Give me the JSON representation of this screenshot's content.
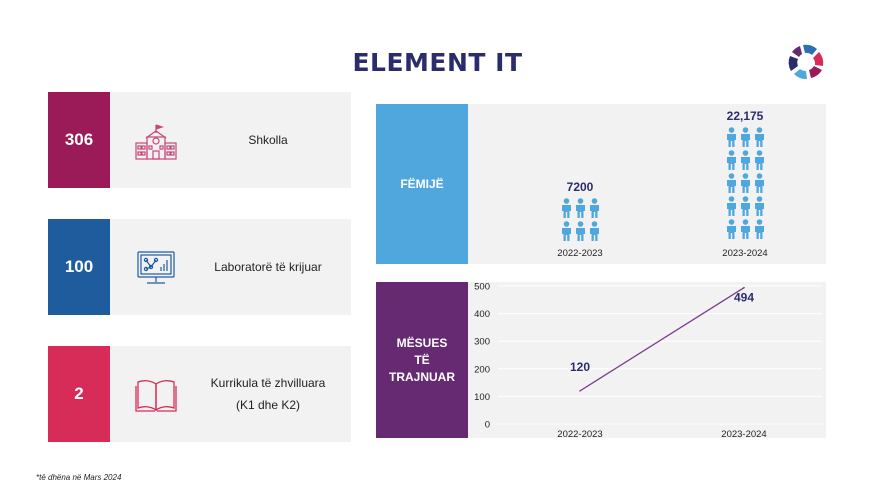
{
  "title": "ELEMENT IT",
  "stats": [
    {
      "value": "306",
      "label_lines": [
        "Shkolla"
      ],
      "icon": "school-icon",
      "color": "#9b1b58"
    },
    {
      "value": "100",
      "label_lines": [
        "Laboratorë të krijuar"
      ],
      "icon": "computer-lab-icon",
      "color": "#1f5c9e"
    },
    {
      "value": "2",
      "label_lines": [
        "Kurrikula të zhvilluara",
        "(K1 dhe K2)"
      ],
      "icon": "open-book-icon",
      "color": "#d62c57"
    }
  ],
  "children_panel": {
    "label": "FËMIJË",
    "color": "#4fa7de"
  },
  "teachers_panel": {
    "label_lines": [
      "MËSUES",
      "TË",
      "TRAJNUAR"
    ],
    "color": "#662a73"
  },
  "footnote": "*të dhëna në Mars 2024",
  "chart_data": [
    {
      "type": "bar",
      "title": "FËMIJË",
      "categories": [
        "2022-2023",
        "2023-2024"
      ],
      "values": [
        7200,
        22175
      ],
      "value_labels": [
        "7200",
        "22,175"
      ],
      "person_icons": [
        6,
        15
      ],
      "color": "#4fa7de"
    },
    {
      "type": "line",
      "title": "MËSUES TË TRAJNUAR",
      "x": [
        "2022-2023",
        "2023-2024"
      ],
      "y": [
        120,
        494
      ],
      "value_labels": [
        "120",
        "494"
      ],
      "ylim": [
        0,
        500
      ],
      "yticks": [
        "0",
        "100",
        "200",
        "300",
        "400",
        "500"
      ],
      "grid": true,
      "color": "#7b3a8c"
    }
  ]
}
